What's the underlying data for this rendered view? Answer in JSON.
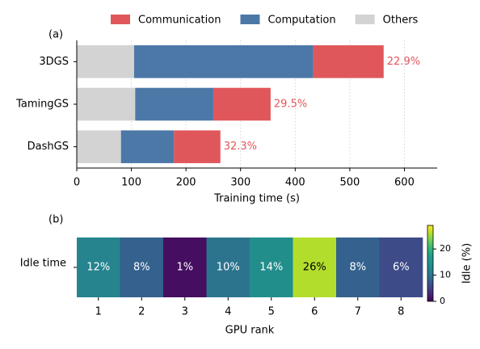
{
  "chart_data": [
    {
      "type": "hbar-stacked",
      "panel_label": "(a)",
      "xlabel": "Training time (s)",
      "categories": [
        "3DGS",
        "TamingGS",
        "DashGS"
      ],
      "series": [
        {
          "name": "Communication",
          "color": "#e0575b",
          "values": [
            129,
            105,
            85
          ]
        },
        {
          "name": "Computation",
          "color": "#4c78a8",
          "values": [
            328,
            143,
            97
          ]
        },
        {
          "name": "Others",
          "color": "#d3d3d3",
          "values": [
            105,
            107,
            81
          ]
        }
      ],
      "annotations": [
        "22.9%",
        "29.5%",
        "32.3%"
      ],
      "annotation_color": "#e0575b",
      "xlim": [
        0,
        660
      ],
      "xticks": [
        0,
        100,
        200,
        300,
        400,
        500,
        600
      ],
      "grid": true,
      "legend": "top"
    },
    {
      "type": "heatmap",
      "panel_label": "(b)",
      "row_label": "Idle time",
      "xlabel": "GPU rank",
      "categories": [
        "1",
        "2",
        "3",
        "4",
        "5",
        "6",
        "7",
        "8"
      ],
      "values": [
        12,
        8,
        1,
        10,
        14,
        26,
        8,
        6
      ],
      "value_labels": [
        "12%",
        "8%",
        "1%",
        "10%",
        "14%",
        "26%",
        "8%",
        "6%"
      ],
      "colormap": "viridis",
      "clim": [
        0,
        29
      ],
      "cticks": [
        0,
        10,
        20
      ],
      "colorbar_label": "Idle (%)"
    }
  ]
}
